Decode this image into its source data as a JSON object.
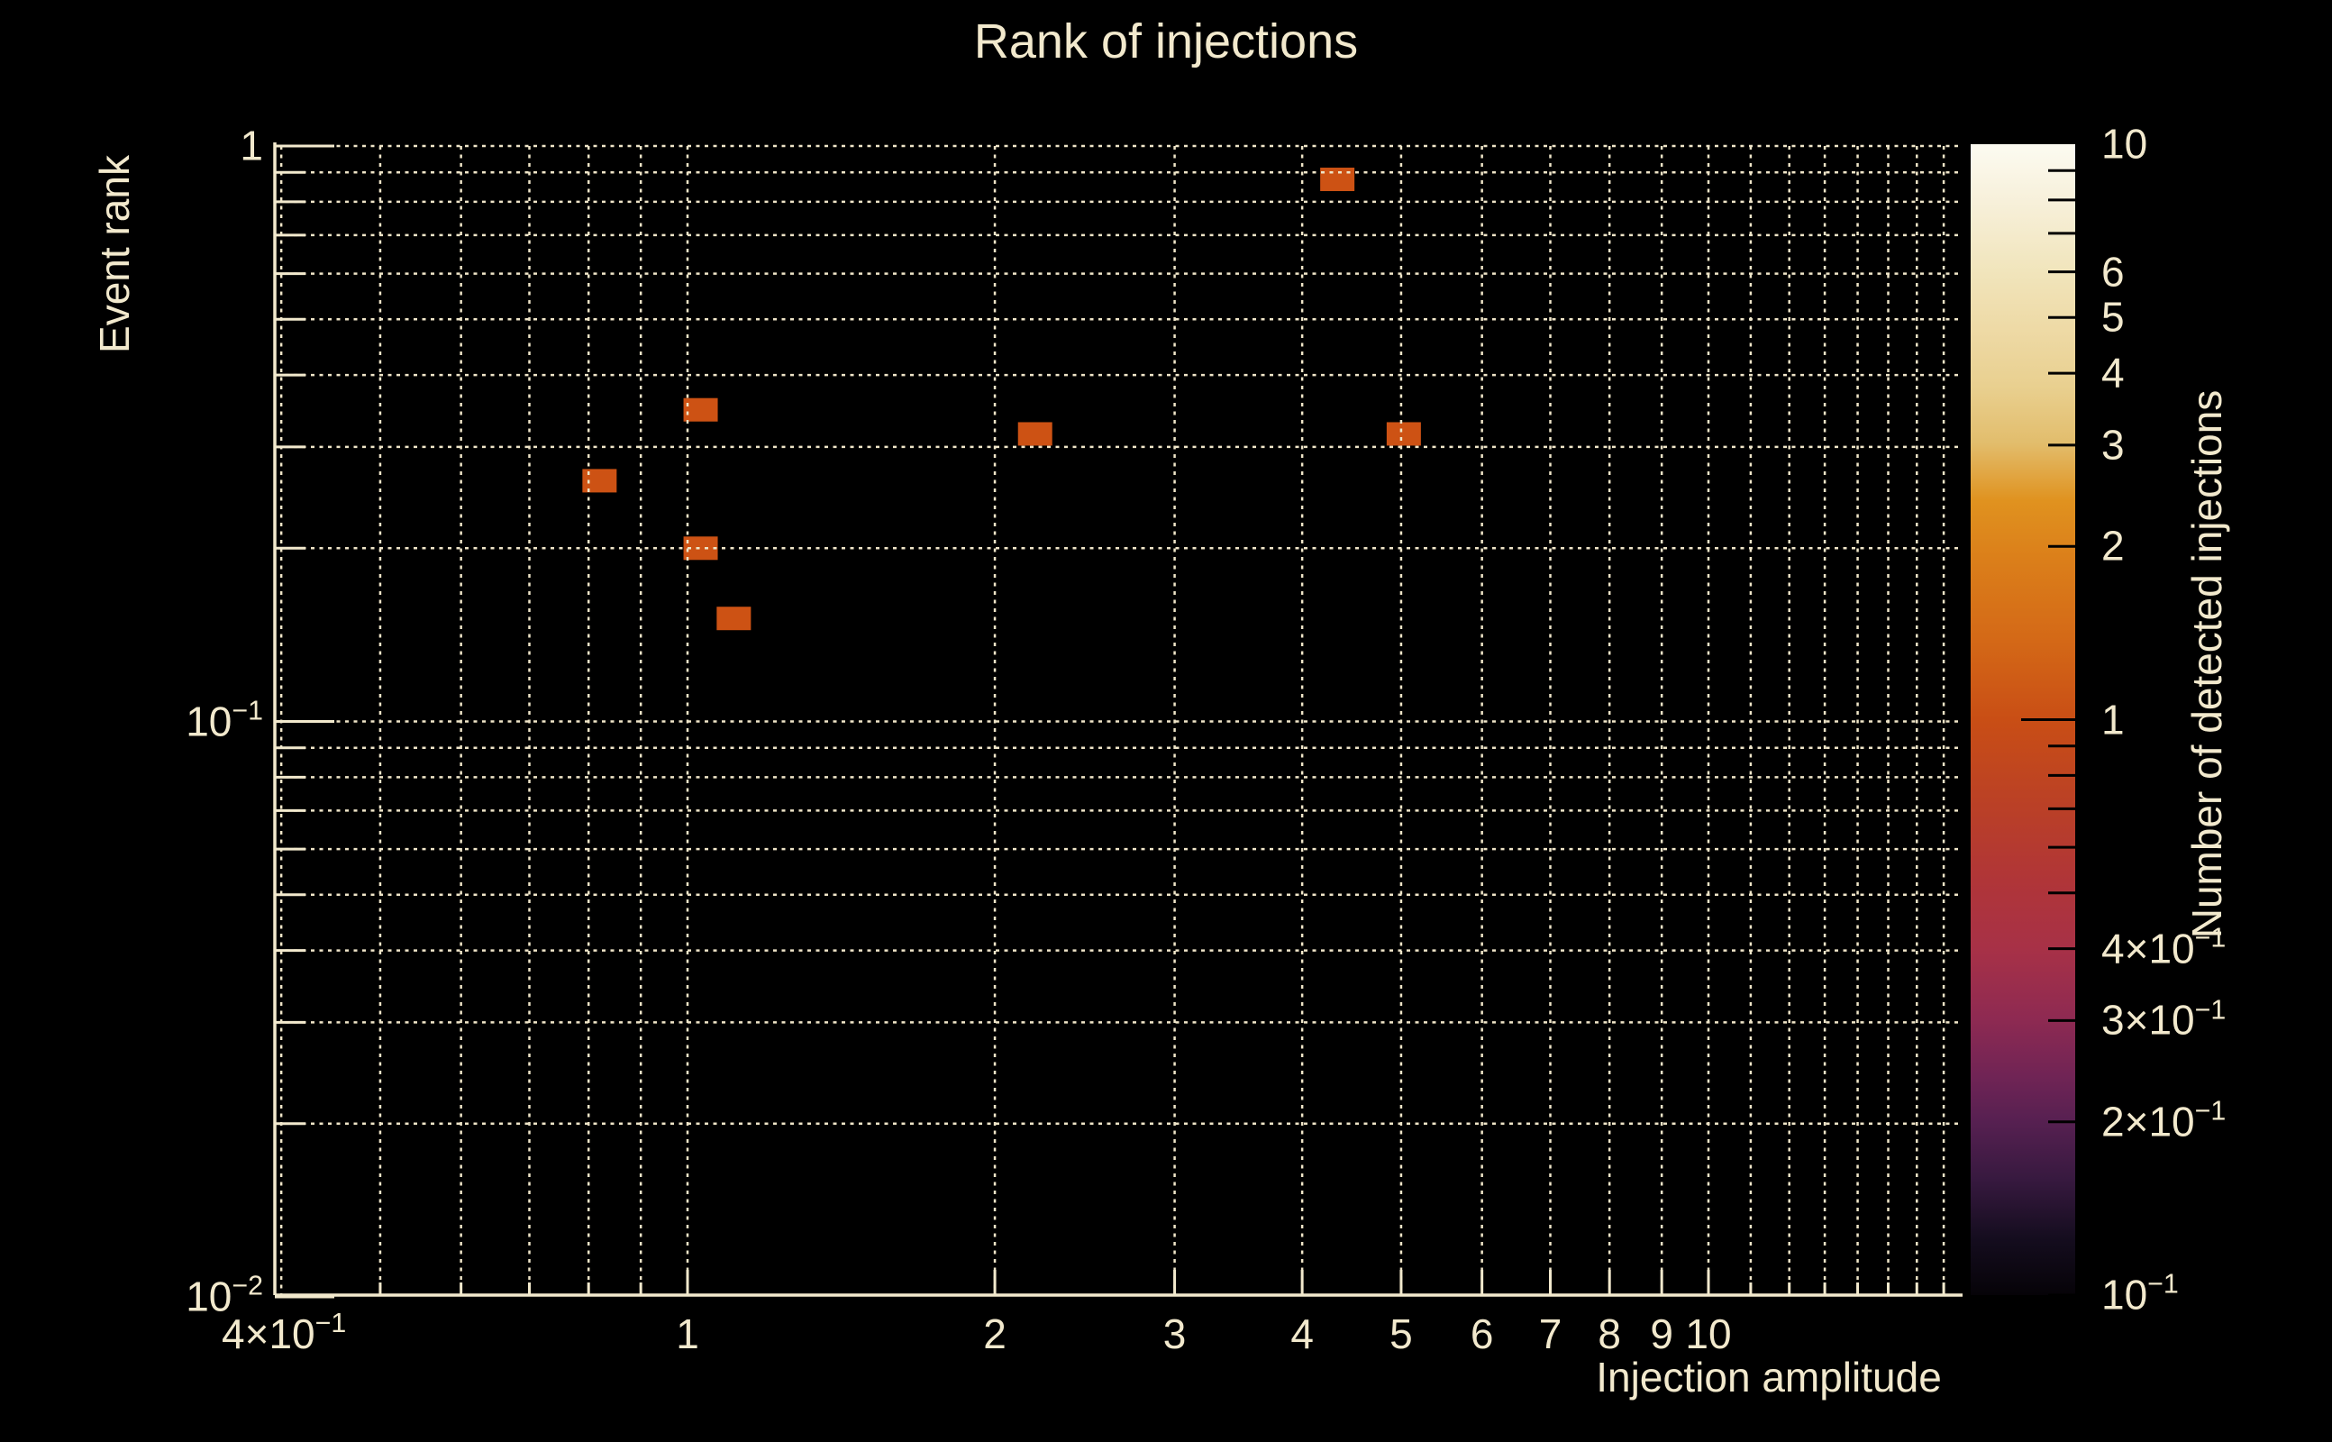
{
  "page": {
    "background": "#000000",
    "text_color": "#f2e9cd",
    "grid_color": "#efe5c8",
    "axis_color": "#f2e9cd"
  },
  "chart_data": {
    "type": "heatmap",
    "title": "Rank of injections",
    "xlabel": "Injection amplitude",
    "ylabel": "Event rank",
    "colorbar_label": "Number of detected injections",
    "xscale": "log",
    "yscale": "log",
    "zscale": "log",
    "xlim": [
      0.39,
      17.7
    ],
    "ylim": [
      0.01,
      1.0
    ],
    "zlim": [
      0.1,
      10
    ],
    "grid": true,
    "bin_color": "#cd5214",
    "points": [
      {
        "amplitude": 0.82,
        "rank": 0.262,
        "count": 1
      },
      {
        "amplitude": 1.03,
        "rank": 0.348,
        "count": 1
      },
      {
        "amplitude": 1.03,
        "rank": 0.2,
        "count": 1
      },
      {
        "amplitude": 1.11,
        "rank": 0.151,
        "count": 1
      },
      {
        "amplitude": 2.19,
        "rank": 0.316,
        "count": 1
      },
      {
        "amplitude": 4.33,
        "rank": 0.875,
        "count": 1
      },
      {
        "amplitude": 5.03,
        "rank": 0.316,
        "count": 1
      }
    ],
    "x_ticks": {
      "major": [
        1,
        2,
        3,
        4,
        5,
        6,
        7,
        8,
        9,
        10
      ],
      "minor": [
        0.5,
        0.6,
        0.7,
        0.8,
        0.9,
        11,
        12,
        13,
        14,
        15,
        16,
        17
      ],
      "labels": [
        {
          "value": 0.4,
          "base": "4×10",
          "exp": "−1"
        },
        {
          "value": 1,
          "base": "1",
          "exp": ""
        },
        {
          "value": 2,
          "base": "2",
          "exp": ""
        },
        {
          "value": 3,
          "base": "3",
          "exp": ""
        },
        {
          "value": 4,
          "base": "4",
          "exp": ""
        },
        {
          "value": 5,
          "base": "5",
          "exp": ""
        },
        {
          "value": 6,
          "base": "6",
          "exp": ""
        },
        {
          "value": 7,
          "base": "7",
          "exp": ""
        },
        {
          "value": 8,
          "base": "8",
          "exp": ""
        },
        {
          "value": 9,
          "base": "9",
          "exp": ""
        },
        {
          "value": 10,
          "base": "10",
          "exp": ""
        }
      ]
    },
    "y_ticks": {
      "major": [
        1,
        0.1,
        0.01
      ],
      "minor": [
        0.9,
        0.8,
        0.7,
        0.6,
        0.5,
        0.4,
        0.3,
        0.2,
        0.09,
        0.08,
        0.07,
        0.06,
        0.05,
        0.04,
        0.03,
        0.02
      ],
      "labels": [
        {
          "value": 1,
          "base": "1",
          "exp": ""
        },
        {
          "value": 0.1,
          "base": "10",
          "exp": "−1"
        },
        {
          "value": 0.01,
          "base": "10",
          "exp": "−2"
        }
      ]
    },
    "gridlines": {
      "vertical": [
        0.4,
        0.5,
        0.6,
        0.7,
        0.8,
        0.9,
        1,
        2,
        3,
        4,
        5,
        6,
        7,
        8,
        9,
        10,
        11,
        12,
        13,
        14,
        15,
        16,
        17
      ],
      "horizontal": [
        1,
        0.9,
        0.8,
        0.7,
        0.6,
        0.5,
        0.4,
        0.3,
        0.2,
        0.1,
        0.09,
        0.08,
        0.07,
        0.06,
        0.05,
        0.04,
        0.03,
        0.02
      ]
    },
    "colorbar": {
      "tick_major": [
        1
      ],
      "tick_minor": [
        9,
        8,
        7,
        6,
        5,
        4,
        3,
        2,
        0.9,
        0.8,
        0.7,
        0.6,
        0.5,
        0.4,
        0.3,
        0.2,
        0.1
      ],
      "labels": [
        {
          "value": 10,
          "base": "10",
          "exp": ""
        },
        {
          "value": 6,
          "base": "6",
          "exp": ""
        },
        {
          "value": 5,
          "base": "5",
          "exp": ""
        },
        {
          "value": 4,
          "base": "4",
          "exp": ""
        },
        {
          "value": 3,
          "base": "3",
          "exp": ""
        },
        {
          "value": 2,
          "base": "2",
          "exp": ""
        },
        {
          "value": 1,
          "base": "1",
          "exp": ""
        },
        {
          "value": 0.4,
          "base": "4×10",
          "exp": "−1"
        },
        {
          "value": 0.3,
          "base": "3×10",
          "exp": "−1"
        },
        {
          "value": 0.2,
          "base": "2×10",
          "exp": "−1"
        },
        {
          "value": 0.1,
          "base": "10",
          "exp": "−1"
        }
      ],
      "gradient_stops": [
        {
          "p": 0,
          "c": "#fcfbf1"
        },
        {
          "p": 5,
          "c": "#f7f0da"
        },
        {
          "p": 11,
          "c": "#f1e5bc"
        },
        {
          "p": 16,
          "c": "#eedaa6"
        },
        {
          "p": 21,
          "c": "#e9d090"
        },
        {
          "p": 26,
          "c": "#e2bd6c"
        },
        {
          "p": 31,
          "c": "#e0921f"
        },
        {
          "p": 36,
          "c": "#db7f1a"
        },
        {
          "p": 43,
          "c": "#d46917"
        },
        {
          "p": 50,
          "c": "#c94e15"
        },
        {
          "p": 57,
          "c": "#bb4125"
        },
        {
          "p": 64,
          "c": "#b03538"
        },
        {
          "p": 70,
          "c": "#a73147"
        },
        {
          "p": 76,
          "c": "#8e2a52"
        },
        {
          "p": 81,
          "c": "#702455"
        },
        {
          "p": 85,
          "c": "#562051"
        },
        {
          "p": 90,
          "c": "#37193f"
        },
        {
          "p": 95,
          "c": "#150d1f"
        },
        {
          "p": 100,
          "c": "#060308"
        }
      ]
    }
  }
}
